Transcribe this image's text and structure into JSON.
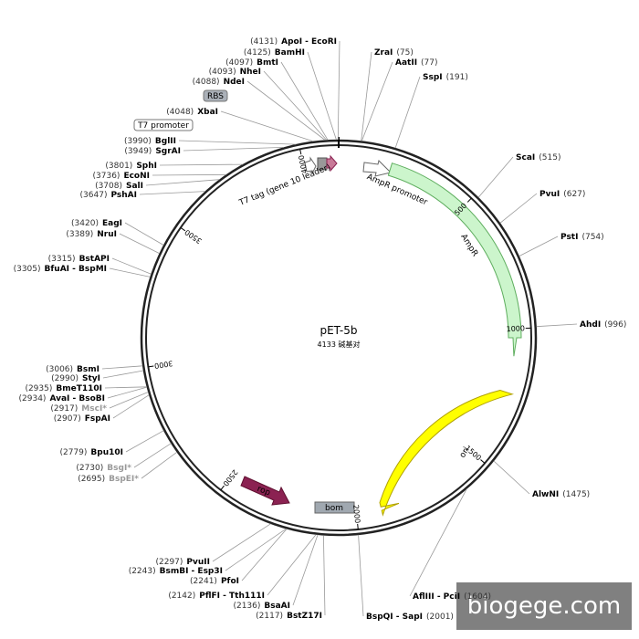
{
  "title": "pET-5b",
  "subtitle": "4133 碱基对",
  "total_length": 4133,
  "ticks": [
    500,
    1000,
    1500,
    2000,
    2500,
    3000,
    3500,
    4000
  ],
  "features": {
    "rbs": "RBS",
    "t7_promoter": "T7 promoter",
    "t7_tag": "T7 tag (gene 10 leader)",
    "ampr_promoter": "AmpR promoter",
    "ampr": "AmpR",
    "ori": "ori",
    "rop": "rop",
    "bom": "bom"
  },
  "watermark": "biogege.com",
  "sites": [
    {
      "name": "ApoI - EcoRI",
      "position": 4131,
      "position_label": "(4131)"
    },
    {
      "name": "BamHI",
      "position": 4125,
      "position_label": "(4125)"
    },
    {
      "name": "BmtI",
      "position": 4097,
      "position_label": "(4097)"
    },
    {
      "name": "NheI",
      "position": 4093,
      "position_label": "(4093)"
    },
    {
      "name": "NdeI",
      "position": 4088,
      "position_label": "(4088)"
    },
    {
      "name": "XbaI",
      "position": 4048,
      "position_label": "(4048)"
    },
    {
      "name": "BglII",
      "position": 3990,
      "position_label": "(3990)"
    },
    {
      "name": "SgrAI",
      "position": 3949,
      "position_label": "(3949)"
    },
    {
      "name": "SphI",
      "position": 3801,
      "position_label": "(3801)"
    },
    {
      "name": "EcoNI",
      "position": 3736,
      "position_label": "(3736)"
    },
    {
      "name": "SalI",
      "position": 3708,
      "position_label": "(3708)"
    },
    {
      "name": "PshAI",
      "position": 3647,
      "position_label": "(3647)"
    },
    {
      "name": "EagI",
      "position": 3420,
      "position_label": "(3420)"
    },
    {
      "name": "NruI",
      "position": 3389,
      "position_label": "(3389)"
    },
    {
      "name": "BstAPI",
      "position": 3315,
      "position_label": "(3315)"
    },
    {
      "name": "BfuAI - BspMI",
      "position": 3305,
      "position_label": "(3305)"
    },
    {
      "name": "BsmI",
      "position": 3006,
      "position_label": "(3006)"
    },
    {
      "name": "StyI",
      "position": 2990,
      "position_label": "(2990)"
    },
    {
      "name": "BmeT110I",
      "position": 2935,
      "position_label": "(2935)"
    },
    {
      "name": "AvaI - BsoBI",
      "position": 2934,
      "position_label": "(2934)"
    },
    {
      "name": "MscI*",
      "position": 2917,
      "position_label": "(2917)",
      "color": "#999999"
    },
    {
      "name": "FspAI",
      "position": 2907,
      "position_label": "(2907)"
    },
    {
      "name": "Bpu10I",
      "position": 2779,
      "position_label": "(2779)"
    },
    {
      "name": "BsgI*",
      "position": 2730,
      "position_label": "(2730)",
      "color": "#999999"
    },
    {
      "name": "BspEI*",
      "position": 2695,
      "position_label": "(2695)",
      "color": "#999999"
    },
    {
      "name": "PvuII",
      "position": 2297,
      "position_label": "(2297)"
    },
    {
      "name": "BsmBI - Esp3I",
      "position": 2243,
      "position_label": "(2243)"
    },
    {
      "name": "PfoI",
      "position": 2241,
      "position_label": "(2241)"
    },
    {
      "name": "PflFI - Tth111I",
      "position": 2142,
      "position_label": "(2142)"
    },
    {
      "name": "BsaAI",
      "position": 2136,
      "position_label": "(2136)"
    },
    {
      "name": "BstZ17I",
      "position": 2117,
      "position_label": "(2117)"
    },
    {
      "name": "ZraI",
      "position": 75,
      "position_label": "(75)"
    },
    {
      "name": "AatII",
      "position": 77,
      "position_label": "(77)"
    },
    {
      "name": "SspI",
      "position": 191,
      "position_label": "(191)"
    },
    {
      "name": "ScaI",
      "position": 515,
      "position_label": "(515)"
    },
    {
      "name": "PvuI",
      "position": 627,
      "position_label": "(627)"
    },
    {
      "name": "PstI",
      "position": 754,
      "position_label": "(754)"
    },
    {
      "name": "AhdI",
      "position": 996,
      "position_label": "(996)"
    },
    {
      "name": "AlwNI",
      "position": 1475,
      "position_label": "(1475)"
    },
    {
      "name": "AflIII - PciI",
      "position": 1604,
      "position_label": "(1604)"
    },
    {
      "name": "BspQI - SapI",
      "position": 2001,
      "position_label": "(2001)"
    }
  ]
}
